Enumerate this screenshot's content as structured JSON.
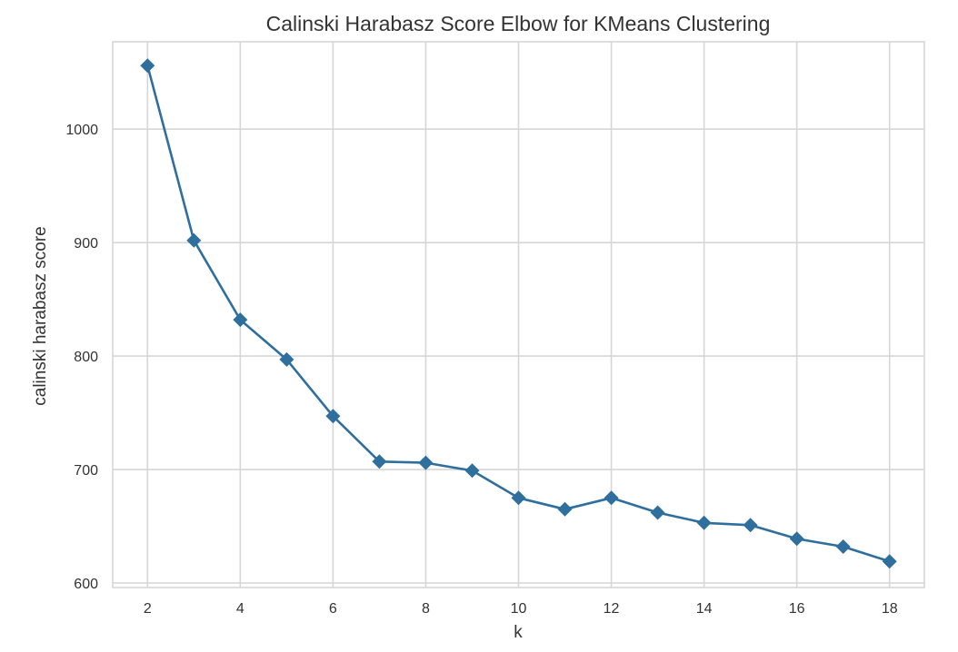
{
  "chart_data": {
    "type": "line",
    "title": "Calinski Harabasz Score Elbow for KMeans Clustering",
    "xlabel": "k",
    "ylabel": "calinski harabasz score",
    "x": [
      2,
      3,
      4,
      5,
      6,
      7,
      8,
      9,
      10,
      11,
      12,
      13,
      14,
      15,
      16,
      17,
      18
    ],
    "series": [
      {
        "values": [
          1056,
          902,
          832,
          797,
          747,
          707,
          706,
          699,
          675,
          665,
          675,
          662,
          653,
          651,
          639,
          632,
          619
        ],
        "color": "#2e6f9e",
        "marker": "diamond"
      }
    ],
    "xlim": [
      1.25,
      18.75
    ],
    "ylim": [
      596,
      1077
    ],
    "xticks": [
      2,
      4,
      6,
      8,
      10,
      12,
      14,
      16,
      18
    ],
    "yticks": [
      600,
      700,
      800,
      900,
      1000
    ],
    "grid": true
  }
}
